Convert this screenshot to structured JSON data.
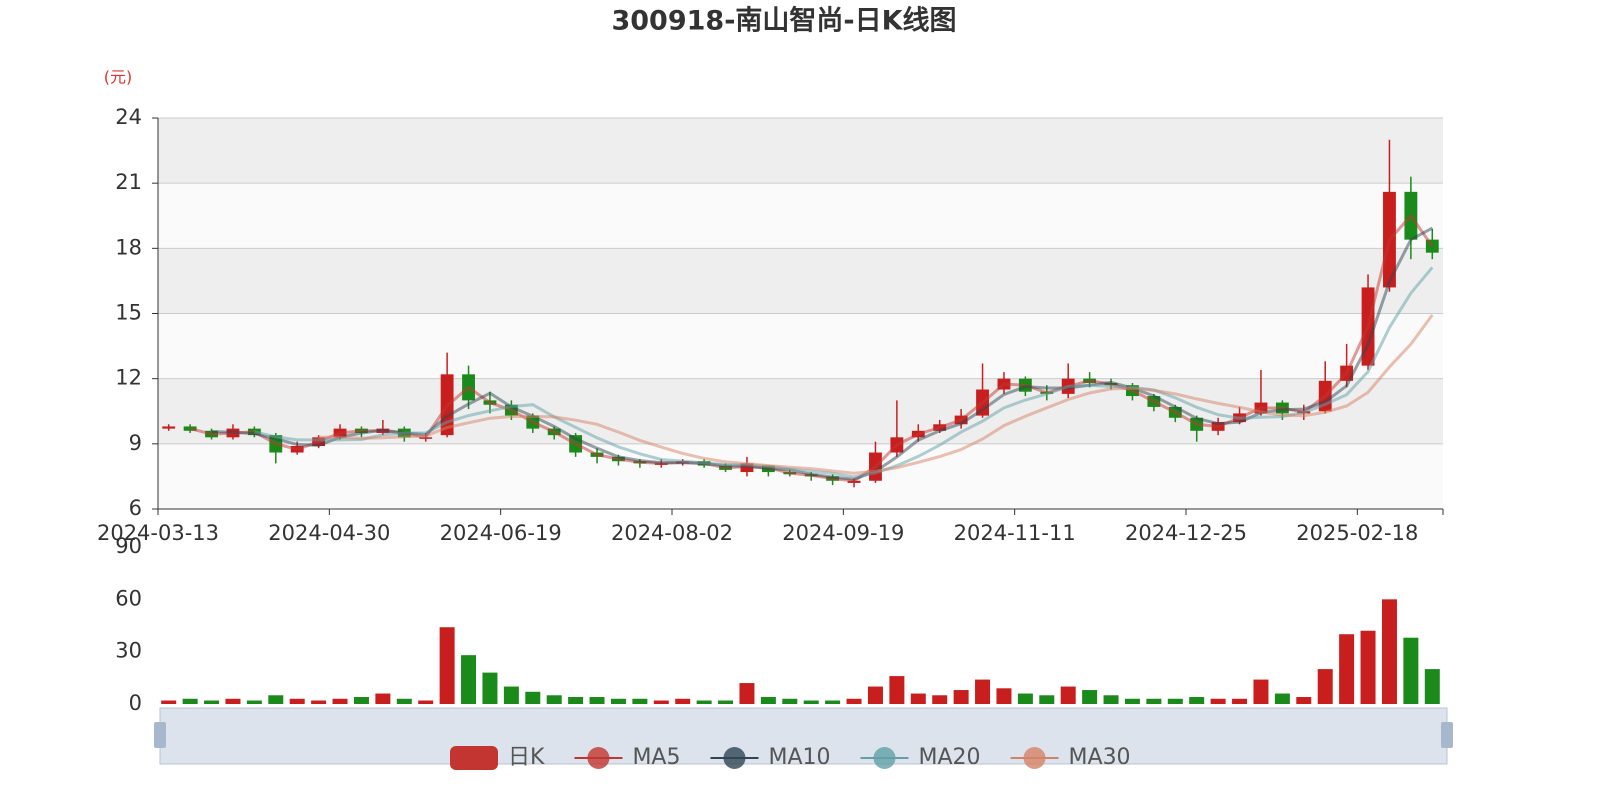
{
  "chart_data": {
    "type": "candlestick",
    "title": "300918-南山智尚-日K线图",
    "y_unit": "(元)",
    "categories": [
      "2024-03-13",
      null,
      null,
      null,
      null,
      null,
      null,
      null,
      "2024-04-30",
      null,
      null,
      null,
      null,
      null,
      null,
      null,
      "2024-06-19",
      null,
      null,
      null,
      null,
      null,
      null,
      null,
      "2024-08-02",
      null,
      null,
      null,
      null,
      null,
      null,
      null,
      "2024-09-19",
      null,
      null,
      null,
      null,
      null,
      null,
      null,
      "2024-11-11",
      null,
      null,
      null,
      null,
      null,
      null,
      null,
      "2024-12-25",
      null,
      null,
      null,
      null,
      null,
      null,
      null,
      "2025-02-18",
      null,
      null,
      null
    ],
    "ylim": [
      6,
      24
    ],
    "yticks": [
      6,
      9,
      12,
      15,
      18,
      21,
      24
    ],
    "grid": true,
    "legend": "bottom",
    "up_color": "#c81e1e",
    "down_color": "#1a8a1a",
    "series": [
      {
        "name": "日K",
        "type": "candlestick",
        "color": "#c23531",
        "values": [
          [
            9.7,
            9.8,
            9.6,
            9.9
          ],
          [
            9.8,
            9.6,
            9.5,
            9.9
          ],
          [
            9.6,
            9.3,
            9.2,
            9.7
          ],
          [
            9.3,
            9.7,
            9.2,
            9.9
          ],
          [
            9.7,
            9.4,
            9.3,
            9.8
          ],
          [
            9.4,
            8.6,
            8.1,
            9.5
          ],
          [
            8.6,
            8.9,
            8.5,
            9.1
          ],
          [
            8.9,
            9.3,
            8.8,
            9.4
          ],
          [
            9.3,
            9.7,
            9.2,
            9.9
          ],
          [
            9.7,
            9.5,
            9.3,
            9.8
          ],
          [
            9.5,
            9.7,
            9.4,
            10.1
          ],
          [
            9.7,
            9.3,
            9.1,
            9.8
          ],
          [
            9.3,
            9.3,
            9.1,
            9.5
          ],
          [
            9.4,
            12.2,
            9.3,
            13.2
          ],
          [
            12.2,
            11.0,
            10.6,
            12.6
          ],
          [
            11.0,
            10.8,
            10.4,
            11.4
          ],
          [
            10.8,
            10.3,
            10.1,
            11.0
          ],
          [
            10.3,
            9.7,
            9.5,
            10.4
          ],
          [
            9.7,
            9.4,
            9.2,
            9.8
          ],
          [
            9.4,
            8.6,
            8.4,
            9.5
          ],
          [
            8.6,
            8.4,
            8.1,
            8.8
          ],
          [
            8.4,
            8.2,
            8.0,
            8.5
          ],
          [
            8.2,
            8.1,
            7.9,
            8.3
          ],
          [
            8.1,
            8.1,
            7.9,
            8.3
          ],
          [
            8.1,
            8.2,
            8.0,
            8.3
          ],
          [
            8.2,
            8.0,
            7.9,
            8.3
          ],
          [
            8.0,
            7.8,
            7.7,
            8.1
          ],
          [
            7.7,
            8.1,
            7.5,
            8.4
          ],
          [
            8.0,
            7.7,
            7.5,
            8.0
          ],
          [
            7.7,
            7.6,
            7.5,
            7.8
          ],
          [
            7.6,
            7.5,
            7.3,
            7.7
          ],
          [
            7.5,
            7.3,
            7.1,
            7.6
          ],
          [
            7.2,
            7.3,
            7.0,
            7.4
          ],
          [
            7.3,
            8.6,
            7.2,
            9.1
          ],
          [
            8.6,
            9.3,
            8.4,
            11.0
          ],
          [
            9.3,
            9.6,
            9.1,
            9.9
          ],
          [
            9.6,
            9.9,
            9.5,
            10.1
          ],
          [
            9.9,
            10.3,
            9.7,
            10.6
          ],
          [
            10.3,
            11.5,
            10.2,
            12.7
          ],
          [
            11.5,
            12.0,
            11.3,
            12.3
          ],
          [
            12.0,
            11.4,
            11.2,
            12.1
          ],
          [
            11.4,
            11.3,
            11.0,
            11.7
          ],
          [
            11.3,
            12.0,
            11.1,
            12.7
          ],
          [
            12.0,
            11.8,
            11.6,
            12.3
          ],
          [
            11.8,
            11.7,
            11.5,
            12.0
          ],
          [
            11.7,
            11.2,
            11.0,
            11.8
          ],
          [
            11.2,
            10.7,
            10.5,
            11.3
          ],
          [
            10.7,
            10.2,
            10.0,
            10.8
          ],
          [
            10.2,
            9.6,
            9.1,
            10.3
          ],
          [
            9.6,
            10.0,
            9.4,
            10.2
          ],
          [
            10.0,
            10.4,
            9.9,
            10.7
          ],
          [
            10.4,
            10.9,
            10.3,
            12.4
          ],
          [
            10.9,
            10.4,
            10.1,
            11.0
          ],
          [
            10.4,
            10.5,
            10.1,
            10.8
          ],
          [
            10.5,
            11.9,
            10.4,
            12.8
          ],
          [
            11.9,
            12.6,
            11.6,
            13.6
          ],
          [
            12.6,
            16.2,
            12.4,
            16.8
          ],
          [
            16.2,
            20.6,
            16.0,
            23.0
          ],
          [
            20.6,
            18.4,
            17.5,
            21.3
          ],
          [
            18.4,
            17.8,
            17.5,
            18.9
          ]
        ]
      },
      {
        "name": "MA5",
        "color": "#c23531",
        "values": [
          null,
          9.7,
          9.45,
          9.5,
          9.55,
          9.0,
          8.75,
          9.1,
          9.5,
          9.6,
          9.6,
          9.5,
          9.3,
          10.75,
          11.6,
          10.9,
          10.55,
          10.0,
          9.55,
          9.0,
          8.5,
          8.3,
          8.15,
          8.1,
          8.15,
          8.1,
          7.9,
          7.95,
          7.9,
          7.65,
          7.55,
          7.4,
          7.3,
          7.95,
          8.95,
          9.45,
          9.75,
          10.1,
          10.9,
          11.75,
          11.7,
          11.35,
          11.65,
          11.9,
          11.75,
          11.45,
          10.95,
          10.45,
          9.9,
          9.8,
          10.2,
          10.65,
          10.65,
          10.45,
          11.2,
          12.25,
          14.4,
          18.4,
          19.5,
          18.1
        ]
      },
      {
        "name": "MA10",
        "color": "#2f4554",
        "values": [
          null,
          null,
          9.57,
          9.53,
          9.47,
          9.23,
          8.97,
          8.93,
          9.3,
          9.5,
          9.63,
          9.5,
          9.43,
          10.27,
          10.83,
          11.33,
          10.7,
          10.27,
          9.8,
          9.23,
          8.8,
          8.4,
          8.23,
          8.13,
          8.13,
          8.1,
          8.0,
          7.97,
          7.87,
          7.8,
          7.6,
          7.47,
          7.37,
          7.73,
          8.4,
          9.17,
          9.6,
          9.93,
          10.57,
          11.27,
          11.63,
          11.57,
          11.57,
          11.7,
          11.83,
          11.57,
          11.2,
          10.7,
          10.17,
          9.93,
          10.0,
          10.43,
          10.57,
          10.6,
          10.93,
          11.67,
          13.57,
          16.47,
          18.4,
          18.93
        ]
      },
      {
        "name": "MA20",
        "color": "#61a0a8",
        "values": [
          null,
          null,
          null,
          null,
          9.56,
          9.32,
          9.18,
          9.18,
          9.18,
          9.2,
          9.42,
          9.5,
          9.5,
          10.0,
          10.3,
          10.52,
          10.72,
          10.8,
          10.24,
          9.76,
          9.28,
          8.86,
          8.54,
          8.28,
          8.2,
          8.12,
          8.04,
          8.04,
          7.96,
          7.84,
          7.74,
          7.64,
          7.48,
          7.66,
          8.0,
          8.42,
          8.94,
          9.54,
          10.04,
          10.66,
          11.02,
          11.3,
          11.64,
          11.7,
          11.64,
          11.6,
          11.48,
          11.12,
          10.68,
          10.34,
          10.18,
          10.22,
          10.26,
          10.44,
          10.82,
          11.26,
          12.32,
          14.36,
          15.94,
          17.12
        ]
      },
      {
        "name": "MA30",
        "color": "#d48265",
        "values": [
          null,
          null,
          null,
          null,
          null,
          null,
          null,
          9.3,
          9.31,
          9.26,
          9.28,
          9.33,
          9.36,
          9.75,
          9.97,
          10.18,
          10.26,
          10.26,
          10.24,
          10.09,
          9.9,
          9.54,
          9.16,
          8.85,
          8.56,
          8.33,
          8.17,
          8.09,
          8.0,
          7.92,
          7.86,
          7.75,
          7.65,
          7.74,
          7.9,
          8.15,
          8.41,
          8.74,
          9.22,
          9.84,
          10.27,
          10.66,
          11.04,
          11.34,
          11.53,
          11.56,
          11.46,
          11.3,
          11.07,
          10.86,
          10.68,
          10.47,
          10.32,
          10.29,
          10.45,
          10.74,
          11.37,
          12.54,
          13.59,
          14.93
        ]
      }
    ],
    "volume": {
      "ylim": [
        0,
        90
      ],
      "yticks": [
        0,
        30,
        60,
        90
      ],
      "values": [
        2,
        3,
        2,
        3,
        2,
        5,
        3,
        2,
        3,
        4,
        6,
        3,
        2,
        44,
        28,
        18,
        10,
        7,
        5,
        4,
        4,
        3,
        3,
        2,
        3,
        2,
        2,
        12,
        4,
        3,
        2,
        2,
        3,
        10,
        16,
        6,
        5,
        8,
        14,
        9,
        6,
        5,
        10,
        8,
        5,
        3,
        3,
        3,
        4,
        3,
        3,
        14,
        6,
        4,
        20,
        40,
        42,
        60,
        38,
        20
      ]
    }
  }
}
